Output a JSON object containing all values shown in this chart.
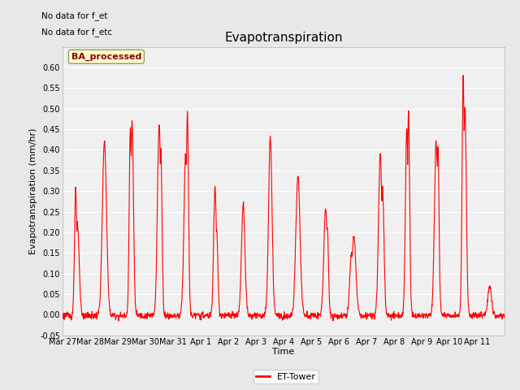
{
  "title": "Evapotranspiration",
  "xlabel": "Time",
  "ylabel": "Evapotranspiration (mm/hr)",
  "ylim": [
    -0.05,
    0.65
  ],
  "yticks": [
    -0.05,
    0.0,
    0.05,
    0.1,
    0.15,
    0.2,
    0.25,
    0.3,
    0.35,
    0.4,
    0.45,
    0.5,
    0.55,
    0.6
  ],
  "line_color": "#ff0000",
  "line_width": 0.8,
  "fig_bg_color": "#e8e8e8",
  "plot_bg_color": "#f0f0f0",
  "annotations": [
    "No data for f_et",
    "No data for f_etc"
  ],
  "legend_label": "ET-Tower",
  "watermark_text": "BA_processed",
  "xtick_labels": [
    "Mar 27",
    "Mar 28",
    "Mar 29",
    "Mar 30",
    "Mar 31",
    "Apr 1",
    "Apr 2",
    "Apr 3",
    "Apr 4",
    "Apr 5",
    "Apr 6",
    "Apr 7",
    "Apr 8",
    "Apr 9",
    "Apr 10",
    "Apr 11"
  ],
  "title_fontsize": 11,
  "axis_label_fontsize": 8,
  "tick_fontsize": 7,
  "annotation_fontsize": 7.5,
  "watermark_fontsize": 8,
  "legend_fontsize": 8
}
